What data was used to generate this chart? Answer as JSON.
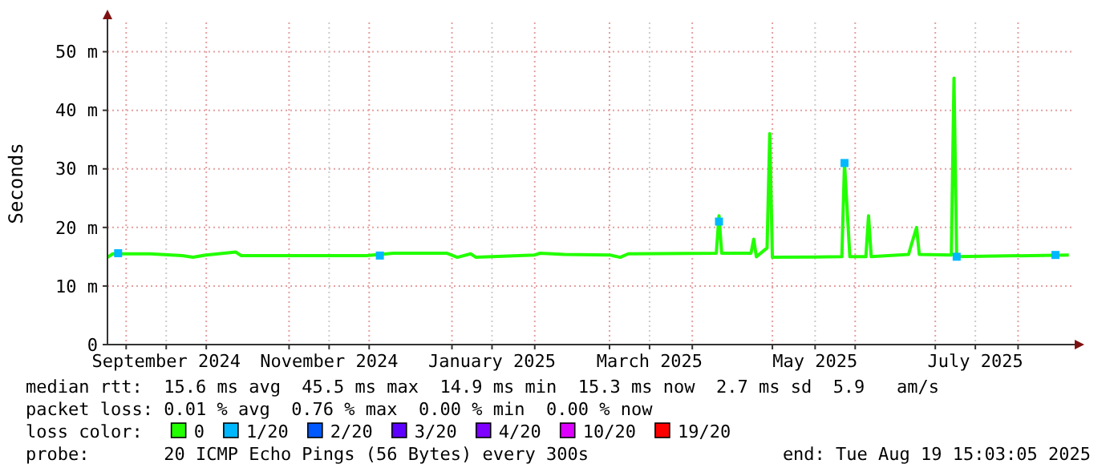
{
  "chart_data": {
    "type": "line",
    "ylabel": "Seconds",
    "xlim": [
      "2024-08-25",
      "2025-08-21"
    ],
    "ylim": [
      0,
      55
    ],
    "yticks": [
      0,
      {
        "value": 10,
        "label": "10 m"
      },
      {
        "value": 20,
        "label": "20 m"
      },
      {
        "value": 30,
        "label": "30 m"
      },
      {
        "value": 40,
        "label": "40 m"
      },
      {
        "value": 50,
        "label": "50 m"
      }
    ],
    "xticks": [
      {
        "value": "2024-09-01",
        "label": null
      },
      {
        "value": "2024-09-16",
        "label": "September 2024"
      },
      {
        "value": "2024-10-01",
        "label": null
      },
      {
        "value": "2024-11-01",
        "label": null
      },
      {
        "value": "2024-11-16",
        "label": "November 2024"
      },
      {
        "value": "2024-12-01",
        "label": null
      },
      {
        "value": "2025-01-01",
        "label": null
      },
      {
        "value": "2025-01-16",
        "label": "January 2025"
      },
      {
        "value": "2025-02-01",
        "label": null
      },
      {
        "value": "2025-03-01",
        "label": null
      },
      {
        "value": "2025-03-16",
        "label": "March 2025"
      },
      {
        "value": "2025-04-01",
        "label": null
      },
      {
        "value": "2025-05-01",
        "label": null
      },
      {
        "value": "2025-05-17",
        "label": "May 2025"
      },
      {
        "value": "2025-06-01",
        "label": null
      },
      {
        "value": "2025-07-01",
        "label": null
      },
      {
        "value": "2025-07-16",
        "label": "July 2025"
      },
      {
        "value": "2025-08-01",
        "label": null
      }
    ],
    "grid": true,
    "legend": "bottom",
    "legend_title": "loss color:",
    "series": [
      {
        "name": "0",
        "color": "#22ff00",
        "x": [
          "2024-08-25",
          "2024-08-27",
          "2024-09-10",
          "2024-09-22",
          "2024-09-26",
          "2024-10-01",
          "2024-10-12",
          "2024-10-14",
          "2024-11-01",
          "2024-11-30",
          "2024-12-10",
          "2024-12-30",
          "2025-01-03",
          "2025-01-08",
          "2025-01-10",
          "2025-02-01",
          "2025-02-03",
          "2025-02-12",
          "2025-03-01",
          "2025-03-05",
          "2025-03-08",
          "2025-04-10",
          "2025-04-11",
          "2025-04-12",
          "2025-04-23",
          "2025-04-24",
          "2025-04-25",
          "2025-04-29",
          "2025-04-30",
          "2025-05-01",
          "2025-05-27",
          "2025-05-28",
          "2025-05-30",
          "2025-06-05",
          "2025-06-06",
          "2025-06-07",
          "2025-06-21",
          "2025-06-22",
          "2025-06-24",
          "2025-06-25",
          "2025-07-07",
          "2025-07-08",
          "2025-07-09",
          "2025-08-20"
        ],
        "values": [
          14.9,
          15.5,
          15.5,
          15.2,
          14.9,
          15.3,
          15.8,
          15.2,
          15.2,
          15.2,
          15.6,
          15.6,
          14.9,
          15.5,
          14.9,
          15.3,
          15.6,
          15.4,
          15.3,
          14.9,
          15.5,
          15.6,
          22,
          15.6,
          15.6,
          18,
          15.0,
          16.5,
          36,
          14.9,
          15.0,
          31,
          15.0,
          15.0,
          22,
          15.0,
          15.4,
          17,
          20,
          15.4,
          15.3,
          45.5,
          15.0,
          15.3
        ]
      },
      {
        "name": "1/20",
        "color": "#00b8ff",
        "type": "scatter",
        "marker": "square",
        "x": [
          "2024-08-29",
          "2024-12-05",
          "2025-04-11",
          "2025-05-28",
          "2025-07-09",
          "2025-08-15"
        ],
        "values": [
          15.6,
          15.2,
          21,
          31,
          15.0,
          15.3
        ]
      },
      {
        "name": "2/20",
        "color": "#0059ff",
        "type": "scatter"
      },
      {
        "name": "3/20",
        "color": "#5e00ff",
        "type": "scatter"
      },
      {
        "name": "4/20",
        "color": "#7e00ff",
        "type": "scatter"
      },
      {
        "name": "10/20",
        "color": "#dd00ff",
        "type": "scatter"
      },
      {
        "name": "19/20",
        "color": "#ff0000",
        "type": "scatter"
      }
    ],
    "annotations": [
      "median rtt:  15.6 ms avg  45.5 ms max  14.9 ms min  15.3 ms now  2.7 ms sd  5.9   am/s",
      "packet loss: 0.01 % avg  0.76 % max  0.00 % min  0.00 % now",
      "probe:       20 ICMP Echo Pings (56 Bytes) every 300s",
      "end: Tue Aug 19 15:03:05 2025"
    ]
  }
}
